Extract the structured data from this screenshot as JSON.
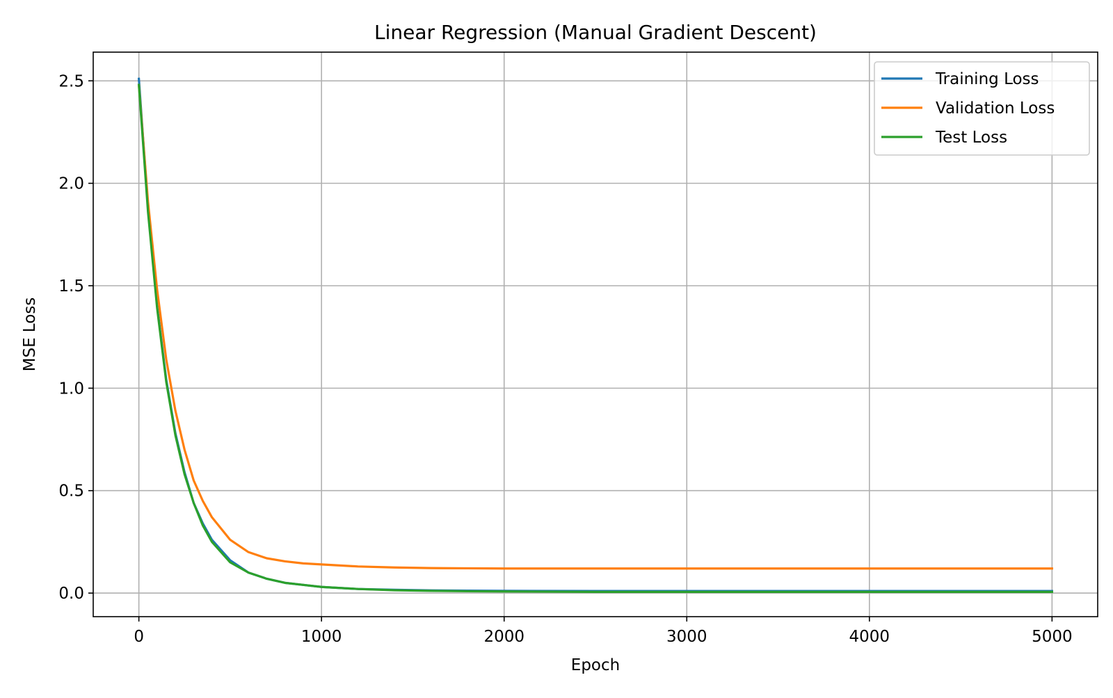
{
  "chart_data": {
    "type": "line",
    "title": "Linear Regression (Manual Gradient Descent)",
    "xlabel": "Epoch",
    "ylabel": "MSE Loss",
    "xlim": [
      -250,
      5250
    ],
    "ylim": [
      -0.115,
      2.64
    ],
    "xticks": [
      0,
      1000,
      2000,
      3000,
      4000,
      5000
    ],
    "xtick_labels": [
      "0",
      "1000",
      "2000",
      "3000",
      "4000",
      "5000"
    ],
    "yticks": [
      0.0,
      0.5,
      1.0,
      1.5,
      2.0,
      2.5
    ],
    "ytick_labels": [
      "0.0",
      "0.5",
      "1.0",
      "1.5",
      "2.0",
      "2.5"
    ],
    "grid": true,
    "legend_position": "top-right",
    "x": [
      0,
      50,
      100,
      150,
      200,
      250,
      300,
      350,
      400,
      500,
      600,
      700,
      800,
      900,
      1000,
      1200,
      1400,
      1600,
      1800,
      2000,
      2500,
      3000,
      3500,
      4000,
      4500,
      5000
    ],
    "series": [
      {
        "name": "Training Loss",
        "color": "#1f77b4",
        "values": [
          2.51,
          1.88,
          1.4,
          1.04,
          0.78,
          0.59,
          0.44,
          0.34,
          0.26,
          0.16,
          0.1,
          0.07,
          0.05,
          0.04,
          0.03,
          0.02,
          0.016,
          0.013,
          0.012,
          0.011,
          0.01,
          0.01,
          0.01,
          0.01,
          0.01,
          0.01
        ]
      },
      {
        "name": "Validation Loss",
        "color": "#ff7f0e",
        "values": [
          2.48,
          1.91,
          1.48,
          1.14,
          0.89,
          0.7,
          0.55,
          0.45,
          0.37,
          0.26,
          0.2,
          0.17,
          0.155,
          0.145,
          0.14,
          0.13,
          0.125,
          0.122,
          0.121,
          0.12,
          0.12,
          0.12,
          0.12,
          0.12,
          0.12,
          0.12
        ]
      },
      {
        "name": "Test Loss",
        "color": "#2ca02c",
        "values": [
          2.48,
          1.86,
          1.39,
          1.03,
          0.77,
          0.58,
          0.44,
          0.33,
          0.25,
          0.15,
          0.1,
          0.07,
          0.05,
          0.04,
          0.03,
          0.02,
          0.014,
          0.011,
          0.009,
          0.008,
          0.006,
          0.006,
          0.006,
          0.006,
          0.006,
          0.006
        ]
      }
    ]
  }
}
